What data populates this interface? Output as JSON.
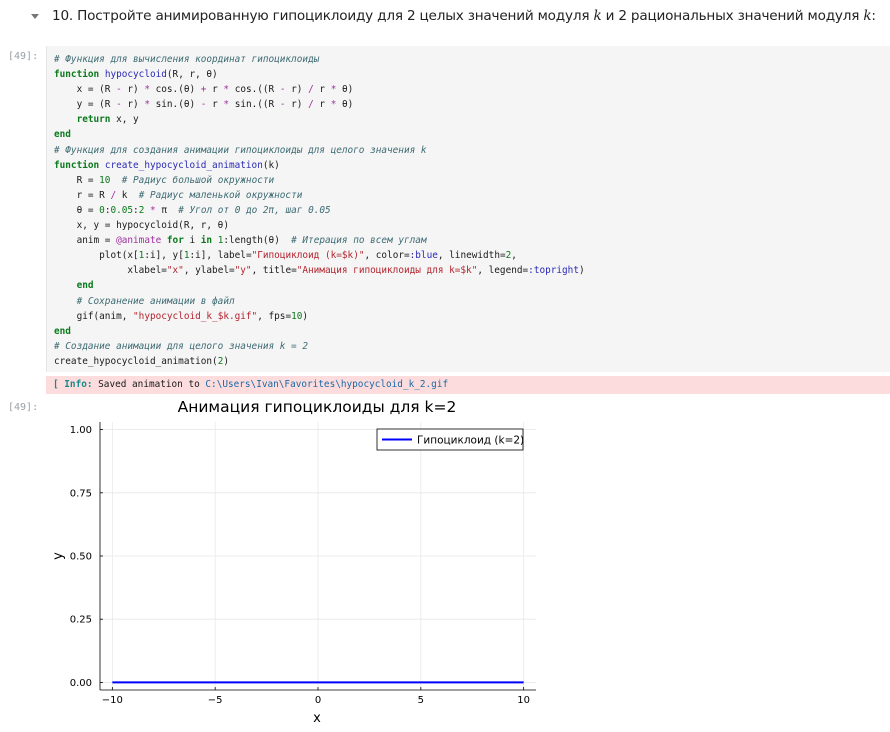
{
  "heading": {
    "prefix": "10. Постройте анимированную гипоциклоиду для 2 целых значений модуля ",
    "var1": "k",
    "middle": " и 2 рациональных значений модуля ",
    "var2": "k",
    "suffix": ":"
  },
  "code_cell": {
    "prompt": "[49]:"
  },
  "output": {
    "prompt": "[49]:",
    "info_tag": "[ Info:",
    "info_message": " Saved animation to ",
    "info_path": "C:\\Users\\Ivan\\Favorites\\hypocycloid_k_2.gif"
  },
  "chart_data": {
    "type": "line",
    "title": "Анимация гипоциклоиды для k=2",
    "xlabel": "x",
    "ylabel": "y",
    "xlim": [
      -10.6,
      10.6
    ],
    "ylim": [
      -0.03,
      1.03
    ],
    "x_ticks": [
      -10,
      -5,
      0,
      5,
      10
    ],
    "x_tick_labels": [
      "−10",
      "−5",
      "0",
      "5",
      "10"
    ],
    "y_ticks": [
      0,
      0.25,
      0.5,
      0.75,
      1.0
    ],
    "y_tick_labels": [
      "0.00",
      "0.25",
      "0.50",
      "0.75",
      "1.00"
    ],
    "grid": true,
    "legend_position": "top-right",
    "series": [
      {
        "name": "Гипоциклоид (k=2)",
        "color": "#0000ff",
        "x": [
          -10,
          10
        ],
        "y": [
          0,
          0
        ]
      }
    ]
  }
}
